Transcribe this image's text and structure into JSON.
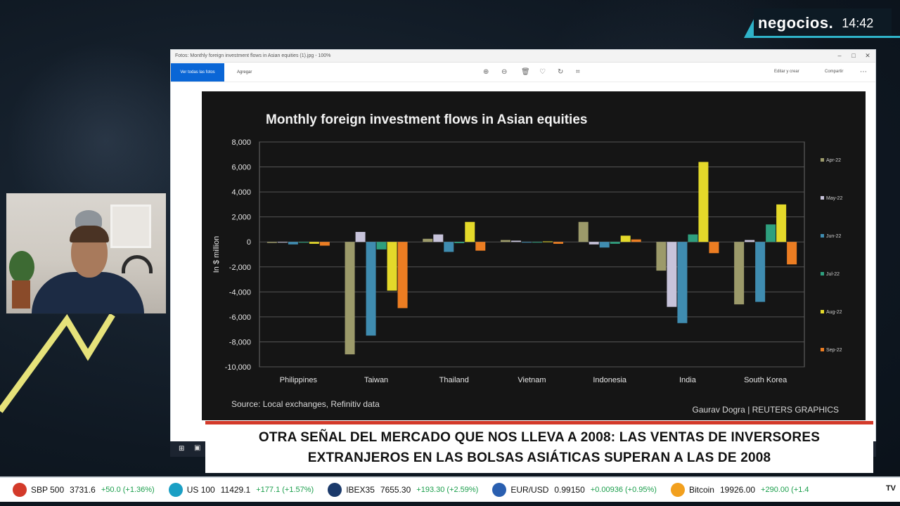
{
  "broadcast": {
    "brand": "negocios.",
    "time": "14:42"
  },
  "window": {
    "title": "Fotos: Monthly foreign investment flows in Asian equities (1).jpg - 100%",
    "toolbar": {
      "primary_label": "Ver todas las fotos",
      "agregar_label": "Agregar",
      "edit_label": "Editar y crear",
      "share_label": "Compartir"
    }
  },
  "chart_data": {
    "type": "bar",
    "title": "Monthly foreign investment flows in Asian equities",
    "ylabel": "In $ million",
    "ylim": [
      -10000,
      8000
    ],
    "yticks": [
      8000,
      6000,
      4000,
      2000,
      0,
      -2000,
      -4000,
      -6000,
      -8000,
      -10000
    ],
    "ytick_labels": [
      "8,000",
      "6,000",
      "4,000",
      "2,000",
      "0",
      "-2,000",
      "-4,000",
      "-6,000",
      "-8,000",
      "-10,000"
    ],
    "categories": [
      "Philippines",
      "Taiwan",
      "Thailand",
      "Vietnam",
      "Indonesia",
      "India",
      "South Korea"
    ],
    "series": [
      {
        "name": "Apr-22",
        "color": "#9c9a6a",
        "values": [
          -80,
          -9000,
          250,
          150,
          1600,
          -2300,
          -5000
        ]
      },
      {
        "name": "May-22",
        "color": "#c7c3da",
        "values": [
          -50,
          800,
          600,
          100,
          -200,
          -5200,
          150
        ]
      },
      {
        "name": "Jun-22",
        "color": "#3f8cb0",
        "values": [
          -200,
          -7500,
          -800,
          -50,
          -450,
          -6500,
          -4800
        ]
      },
      {
        "name": "Jul-22",
        "color": "#2e9f7e",
        "values": [
          -60,
          -600,
          -100,
          -30,
          -150,
          600,
          1400
        ]
      },
      {
        "name": "Aug-22",
        "color": "#e4d92a",
        "values": [
          -150,
          -3900,
          1600,
          40,
          500,
          6400,
          3000
        ]
      },
      {
        "name": "Sep-22",
        "color": "#ec7d22",
        "values": [
          -300,
          -5300,
          -700,
          -150,
          200,
          -900,
          -1800
        ]
      }
    ],
    "legend_position": "right",
    "grid": true,
    "source": "Source: Local exchanges, Refinitiv data",
    "credit": "Gaurav Dogra | REUTERS GRAPHICS"
  },
  "lower_third": {
    "line1": "OTRA SEÑAL DEL MERCADO QUE NOS LLEVA A 2008: LAS VENTAS DE INVERSORES",
    "line2": "EXTRANJEROS EN LAS BOLSAS ASIÁTICAS SUPERAN A LAS DE 2008"
  },
  "ticker": [
    {
      "name": "SBP 500",
      "value": "3731.6",
      "change": "+50.0 (+1.36%)",
      "color": "#d33a2a"
    },
    {
      "name": "US 100",
      "value": "11429.1",
      "change": "+177.1 (+1.57%)",
      "color": "#1a9fc4"
    },
    {
      "name": "IBEX35",
      "value": "7655.30",
      "change": "+193.30 (+2.59%)",
      "color": "#1b3a6b"
    },
    {
      "name": "EUR/USD",
      "value": "0.99150",
      "change": "+0.00936 (+0.95%)",
      "color": "#2a5fb0"
    },
    {
      "name": "Bitcoin",
      "value": "19926.00",
      "change": "+290.00 (+1.4",
      "color": "#f2a01e"
    }
  ],
  "ticker_end": "TV"
}
